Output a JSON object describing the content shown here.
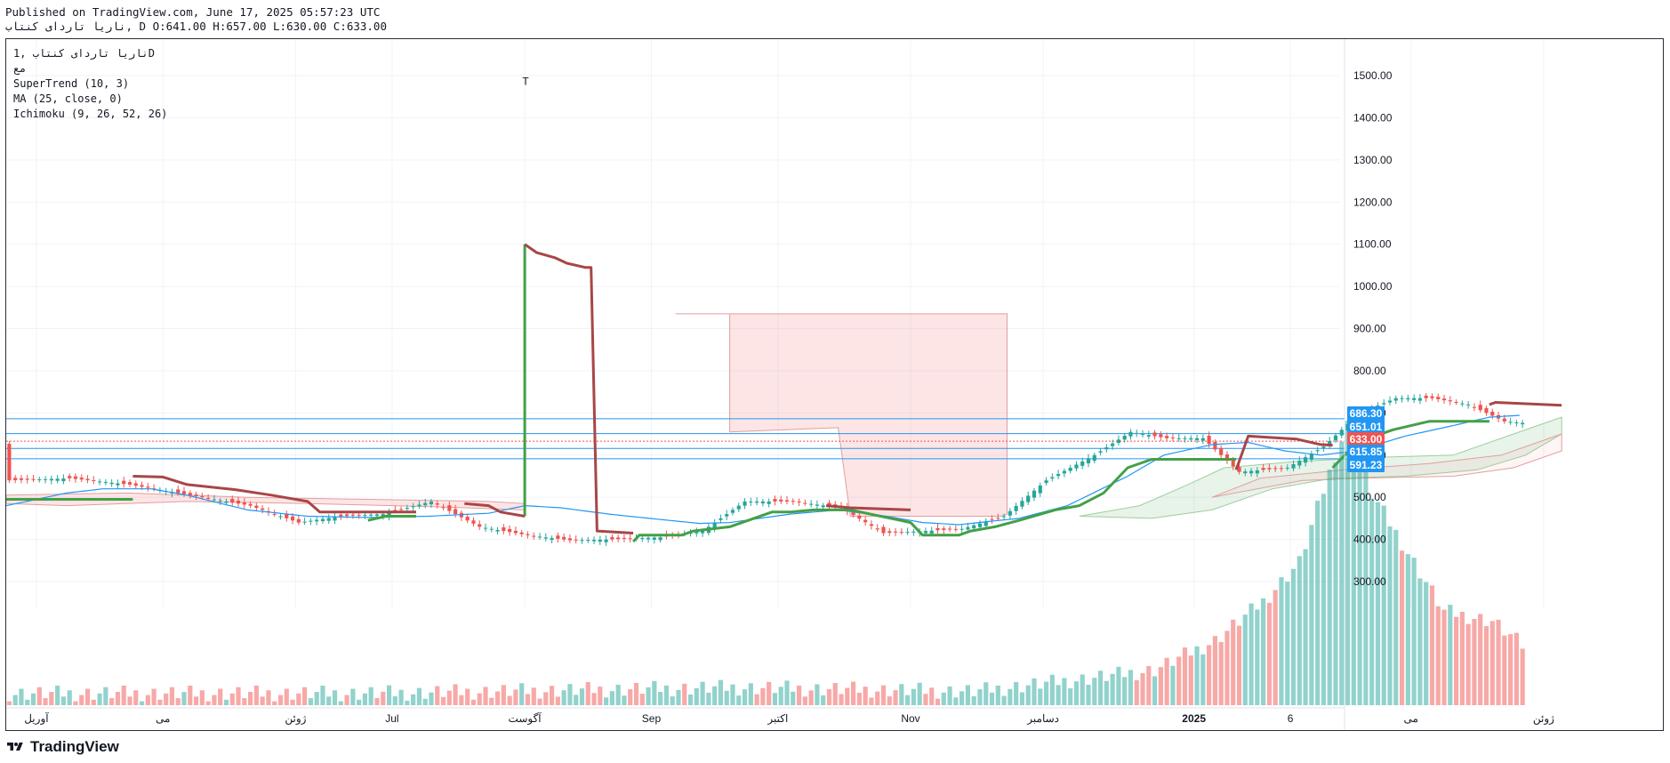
{
  "header": {
    "published_line": "Published on TradingView.com, June 17, 2025 05:57:23 UTC",
    "ohlc_line": "ناريا تاردای کنتاب, D O:641.00 H:657.00 L:630.00 C:633.00"
  },
  "legend": {
    "symbol_line": "ناريا تاردای کنتاب ,1D",
    "sub_line": "مع",
    "supertrend": "SuperTrend (10, 3)",
    "ma": "MA (25, close, 0)",
    "ichimoku": "Ichimoku (9, 26, 52, 26)",
    "marker": "T"
  },
  "brand": {
    "name": "TradingView"
  },
  "colors": {
    "up": "#26a69a",
    "down": "#ef5350",
    "supertrend_up": "#43a047",
    "supertrend_down": "#a84646",
    "ma": "#2196f3",
    "cloud_red": "rgba(239,83,80,0.15)",
    "cloud_green": "rgba(67,160,71,0.12)",
    "hline": "#2196f3",
    "tag_blue": "#2196f3",
    "tag_red": "#ef5350"
  },
  "chart_data": {
    "type": "candlestick",
    "timeframe": "1D",
    "ylim": [
      280,
      1560
    ],
    "y_ticks": [
      300,
      400,
      500,
      600,
      700,
      800,
      900,
      1000,
      1100,
      1200,
      1300,
      1400,
      1500
    ],
    "y_tick_labels": [
      "300.00",
      "400.00",
      "500.00",
      "600.00",
      "700.00",
      "800.00",
      "900.00",
      "1000.00",
      "1100.00",
      "1200.00",
      "1300.00",
      "1400.00",
      "1500.00"
    ],
    "x_labels": [
      "آوریل",
      "می",
      "ژوئن",
      "Jul",
      "آگوست",
      "Sep",
      "اکتبر",
      "Nov",
      "دسامبر",
      "2025",
      "6",
      "می",
      "ژوئن"
    ],
    "x_label_bold": [
      false,
      false,
      false,
      false,
      false,
      false,
      false,
      false,
      false,
      true,
      false,
      false,
      false
    ],
    "n_bars": 252,
    "x_label_bars": [
      5,
      26,
      48,
      64,
      86,
      107,
      128,
      150,
      172,
      197,
      213,
      233,
      255
    ],
    "price_tags": [
      {
        "value": 686.3,
        "label": "686.30",
        "color": "#2196f3"
      },
      {
        "value": 651.01,
        "label": "651.01",
        "color": "#2196f3"
      },
      {
        "value": 633.0,
        "label": "633.00",
        "color": "#ef5350"
      },
      {
        "value": 615.85,
        "label": "615.85",
        "color": "#2196f3"
      },
      {
        "value": 591.23,
        "label": "591.23",
        "color": "#2196f3"
      }
    ],
    "close_anchors": [
      [
        0,
        540
      ],
      [
        10,
        545
      ],
      [
        20,
        530
      ],
      [
        30,
        505
      ],
      [
        40,
        480
      ],
      [
        48,
        440
      ],
      [
        55,
        455
      ],
      [
        62,
        460
      ],
      [
        70,
        490
      ],
      [
        78,
        430
      ],
      [
        86,
        410
      ],
      [
        93,
        398
      ],
      [
        100,
        400
      ],
      [
        108,
        405
      ],
      [
        115,
        420
      ],
      [
        122,
        490
      ],
      [
        130,
        490
      ],
      [
        138,
        475
      ],
      [
        145,
        415
      ],
      [
        152,
        420
      ],
      [
        158,
        425
      ],
      [
        165,
        455
      ],
      [
        172,
        540
      ],
      [
        180,
        600
      ],
      [
        186,
        655
      ],
      [
        192,
        640
      ],
      [
        198,
        640
      ],
      [
        204,
        560
      ],
      [
        212,
        570
      ],
      [
        218,
        620
      ],
      [
        224,
        700
      ],
      [
        230,
        735
      ],
      [
        236,
        735
      ],
      [
        242,
        720
      ],
      [
        248,
        680
      ],
      [
        252,
        675
      ],
      [
        258,
        633
      ]
    ],
    "volume_anchors": [
      [
        0,
        288
      ],
      [
        60,
        288
      ],
      [
        120,
        291
      ],
      [
        160,
        289
      ],
      [
        180,
        296
      ],
      [
        190,
        300
      ],
      [
        200,
        315
      ],
      [
        208,
        335
      ],
      [
        214,
        355
      ],
      [
        220,
        410
      ],
      [
        222,
        425
      ],
      [
        226,
        390
      ],
      [
        232,
        360
      ],
      [
        238,
        330
      ],
      [
        246,
        325
      ],
      [
        252,
        310
      ],
      [
        258,
        300
      ]
    ],
    "volume_scale": {
      "base": 282,
      "px_per_unit": 1.0
    },
    "supertrend_up_segments": [
      [
        [
          0,
          495
        ],
        [
          21,
          495
        ]
      ],
      [
        [
          60,
          445
        ],
        [
          63,
          455
        ],
        [
          68,
          455
        ]
      ],
      [
        [
          86,
          455
        ],
        [
          86,
          1100
        ]
      ],
      [
        [
          104,
          395
        ],
        [
          105,
          410
        ],
        [
          112,
          410
        ],
        [
          114,
          420
        ],
        [
          120,
          430
        ],
        [
          127,
          465
        ],
        [
          130,
          465
        ],
        [
          134,
          470
        ],
        [
          140,
          470
        ],
        [
          150,
          440
        ],
        [
          152,
          410
        ],
        [
          158,
          410
        ],
        [
          160,
          420
        ],
        [
          164,
          430
        ],
        [
          168,
          445
        ],
        [
          174,
          470
        ],
        [
          178,
          480
        ],
        [
          182,
          510
        ],
        [
          186,
          570
        ],
        [
          190,
          590
        ],
        [
          204,
          590
        ]
      ],
      [
        [
          220,
          570
        ],
        [
          222,
          600
        ],
        [
          226,
          640
        ],
        [
          230,
          660
        ],
        [
          236,
          680
        ],
        [
          246,
          680
        ]
      ]
    ],
    "supertrend_down_segments": [
      [
        [
          21,
          550
        ],
        [
          26,
          548
        ],
        [
          30,
          530
        ],
        [
          38,
          518
        ],
        [
          44,
          505
        ],
        [
          50,
          490
        ],
        [
          52,
          465
        ],
        [
          68,
          465
        ]
      ],
      [
        [
          76,
          485
        ],
        [
          80,
          480
        ],
        [
          82,
          465
        ],
        [
          86,
          455
        ]
      ],
      [
        [
          86,
          1100
        ],
        [
          88,
          1080
        ],
        [
          91,
          1068
        ],
        [
          93,
          1055
        ],
        [
          96,
          1045
        ],
        [
          97,
          1045
        ],
        [
          98,
          420
        ],
        [
          104,
          415
        ]
      ],
      [
        [
          136,
          480
        ],
        [
          140,
          475
        ],
        [
          150,
          470
        ]
      ],
      [
        [
          204,
          565
        ],
        [
          206,
          645
        ],
        [
          214,
          638
        ],
        [
          218,
          625
        ],
        [
          220,
          623
        ]
      ],
      [
        [
          246,
          720
        ],
        [
          247,
          725
        ],
        [
          258,
          718
        ]
      ]
    ],
    "ma_anchors": [
      [
        0,
        480
      ],
      [
        10,
        510
      ],
      [
        16,
        520
      ],
      [
        24,
        520
      ],
      [
        30,
        505
      ],
      [
        40,
        470
      ],
      [
        50,
        455
      ],
      [
        60,
        452
      ],
      [
        70,
        455
      ],
      [
        80,
        462
      ],
      [
        86,
        480
      ],
      [
        92,
        475
      ],
      [
        100,
        460
      ],
      [
        110,
        445
      ],
      [
        115,
        438
      ],
      [
        120,
        440
      ],
      [
        130,
        460
      ],
      [
        138,
        470
      ],
      [
        146,
        455
      ],
      [
        152,
        440
      ],
      [
        158,
        435
      ],
      [
        168,
        450
      ],
      [
        176,
        480
      ],
      [
        186,
        550
      ],
      [
        192,
        600
      ],
      [
        200,
        625
      ],
      [
        206,
        630
      ],
      [
        212,
        610
      ],
      [
        218,
        600
      ],
      [
        224,
        610
      ],
      [
        232,
        645
      ],
      [
        240,
        670
      ],
      [
        246,
        690
      ],
      [
        252,
        695
      ],
      [
        258,
        675
      ]
    ],
    "cloud_red_polygons": [
      [
        [
          111,
          930
        ],
        [
          120,
          930
        ],
        [
          120,
          930
        ],
        [
          111,
          930
        ]
      ],
      [
        [
          111,
          930
        ],
        [
          120,
          935
        ],
        [
          120,
          655
        ],
        [
          138,
          665
        ],
        [
          138,
          455
        ],
        [
          150,
          455
        ],
        [
          166,
          935
        ],
        [
          120,
          935
        ]
      ]
    ],
    "cloud_red_poly_main": [
      [
        111,
        935
      ],
      [
        120,
        935
      ],
      [
        166,
        935
      ],
      [
        166,
        460
      ],
      [
        165,
        455
      ],
      [
        140,
        455
      ],
      [
        138,
        665
      ],
      [
        120,
        655
      ],
      [
        120,
        935
      ]
    ],
    "cloud_green_poly": [
      [
        190,
        450
      ],
      [
        200,
        470
      ],
      [
        210,
        520
      ],
      [
        220,
        545
      ],
      [
        232,
        550
      ],
      [
        244,
        565
      ],
      [
        252,
        600
      ],
      [
        258,
        650
      ],
      [
        258,
        690
      ],
      [
        250,
        650
      ],
      [
        240,
        600
      ],
      [
        228,
        595
      ],
      [
        214,
        585
      ],
      [
        202,
        570
      ],
      [
        196,
        530
      ],
      [
        188,
        480
      ],
      [
        178,
        455
      ]
    ],
    "cloud_pink_poly": [
      [
        200,
        500
      ],
      [
        215,
        540
      ],
      [
        225,
        545
      ],
      [
        240,
        550
      ],
      [
        250,
        570
      ],
      [
        258,
        610
      ],
      [
        258,
        650
      ],
      [
        248,
        600
      ],
      [
        236,
        580
      ],
      [
        222,
        565
      ],
      [
        208,
        545
      ]
    ]
  }
}
